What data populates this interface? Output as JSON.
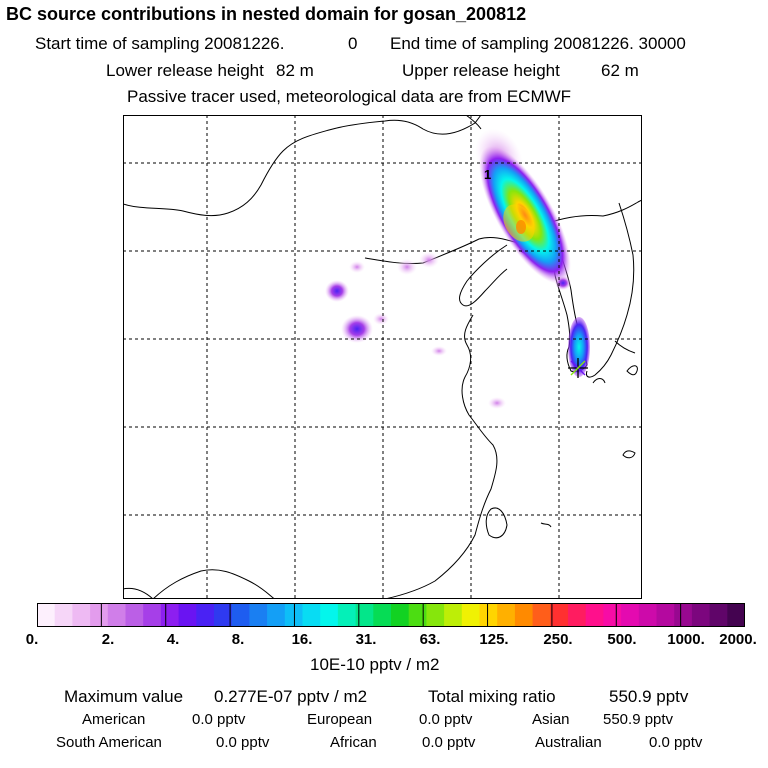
{
  "header": {
    "title": "BC  source contributions in nested domain for gosan_200812",
    "start_label": "Start time of sampling 20081226.",
    "start_hour": "0",
    "end_label": "End time of sampling 20081226. 30000",
    "lower_label": "Lower release height",
    "lower_value": "82 m",
    "upper_label": "Upper release height",
    "upper_value": "62 m",
    "tracer_note": "Passive tracer used, meteorological data are from ECMWF"
  },
  "map": {
    "marker_label": "1"
  },
  "colorbar": {
    "colors": [
      "#fdf0fd",
      "#f6d6f8",
      "#eebaf3",
      "#e39ced",
      "#d07ee9",
      "#bb5fe6",
      "#a63fe8",
      "#8d1ff0",
      "#6a14f2",
      "#4a22f4",
      "#2f3af0",
      "#1e5df0",
      "#1a7ff2",
      "#149ff6",
      "#0ebef7",
      "#08dcf3",
      "#03f6ec",
      "#04f0b8",
      "#03e68a",
      "#06dc55",
      "#12d222",
      "#4cdd12",
      "#86e60c",
      "#bdee07",
      "#f0f103",
      "#ffd400",
      "#ffb000",
      "#ff8a00",
      "#ff5e1a",
      "#ff3030",
      "#ff1c60",
      "#ff108c",
      "#f70ca6",
      "#e40ab0",
      "#cd0aaa",
      "#b4099f",
      "#980890",
      "#7c067e",
      "#600569",
      "#440350"
    ],
    "tick_labels": [
      "0.",
      "2.",
      "4.",
      "8.",
      "16.",
      "31.",
      "63.",
      "125.",
      "250.",
      "500.",
      "1000.",
      "2000."
    ],
    "unit": "10E-10 pptv / m2"
  },
  "stats": {
    "max_label": "Maximum value",
    "max_value": "0.277E-07 pptv / m2",
    "total_label": "Total mixing ratio",
    "total_value": "550.9 pptv",
    "american_label": "American",
    "american_value": "0.0 pptv",
    "european_label": "European",
    "european_value": "0.0 pptv",
    "asian_label": "Asian",
    "asian_value": "550.9 pptv",
    "south_american_label": "South American",
    "south_american_value": "0.0 pptv",
    "african_label": "African",
    "african_value": "0.0 pptv",
    "australian_label": "Australian",
    "australian_value": "0.0 pptv"
  }
}
